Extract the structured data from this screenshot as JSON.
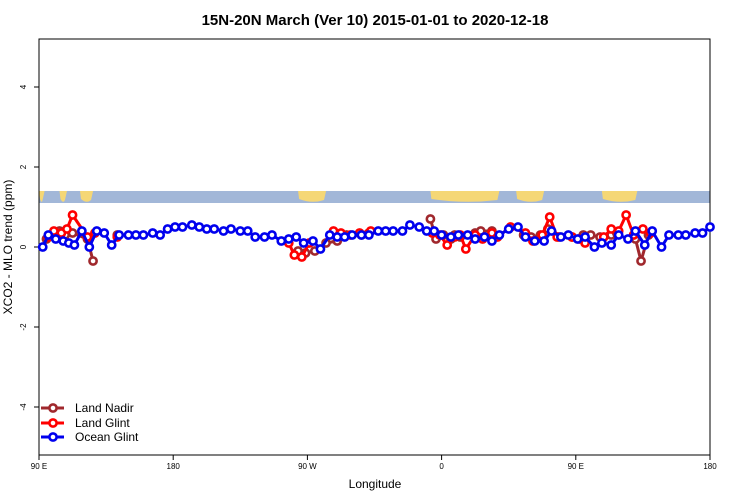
{
  "chart_data": {
    "type": "line",
    "title": "15N-20N March (Ver 10)   2015-01-01 to 2020-12-18",
    "xlabel": "Longitude",
    "ylabel": "XCO2 - MLO trend (ppm)",
    "xlim": [
      90,
      450
    ],
    "ylim": [
      -5.2,
      5.2
    ],
    "x_ticks": [
      {
        "value": 90,
        "label": "90 E"
      },
      {
        "value": 162,
        "label": "180"
      },
      {
        "value": 234,
        "label": "90 W"
      },
      {
        "value": 306,
        "label": "0"
      },
      {
        "value": 378,
        "label": "90 E"
      },
      {
        "value": 450,
        "label": "180"
      }
    ],
    "y_ticks": [
      {
        "value": -4,
        "label": "-4"
      },
      {
        "value": -2,
        "label": "-2"
      },
      {
        "value": 0,
        "label": "0"
      },
      {
        "value": 2,
        "label": "2"
      },
      {
        "value": 4,
        "label": "4"
      }
    ],
    "legend_position": "bottom-left",
    "map_strip": {
      "y_low": 1.1,
      "y_high": 1.4,
      "ocean_color": "#a2b7d8",
      "land_color": "#f5d776"
    },
    "series": [
      {
        "name": "Land Nadir",
        "color": "#a0282d",
        "x": [
          94,
          97,
          101,
          104,
          108,
          116,
          119,
          132,
          229,
          233,
          238,
          244,
          250,
          255,
          263,
          267,
          300,
          303,
          307,
          311,
          313,
          316,
          324,
          327,
          333,
          350,
          354,
          359,
          363,
          369,
          376,
          382,
          386,
          391,
          397,
          400,
          410,
          413,
          417
        ],
        "y": [
          0.2,
          0.3,
          0.4,
          0.3,
          0.35,
          0.2,
          -0.35,
          0.3,
          -0.1,
          -0.15,
          -0.1,
          0.1,
          0.15,
          0.3,
          0.3,
          0.35,
          0.7,
          0.2,
          0.3,
          0.2,
          0.3,
          0.25,
          0.35,
          0.4,
          0.4,
          0.3,
          0.25,
          0.3,
          0.45,
          0.25,
          0.25,
          0.3,
          0.3,
          0.25,
          0.3,
          0.35,
          0.2,
          -0.35,
          0.3
        ]
      },
      {
        "name": "Land Glint",
        "color": "#ff0000",
        "x": [
          95,
          98,
          102,
          105,
          108,
          116,
          120,
          132,
          224,
          227,
          231,
          235,
          248,
          252,
          257,
          262,
          268,
          301,
          305,
          309,
          313,
          316,
          319,
          324,
          328,
          333,
          336,
          343,
          351,
          355,
          360,
          364,
          368,
          376,
          380,
          383,
          393,
          397,
          401,
          405,
          409,
          414,
          418
        ],
        "y": [
          0.25,
          0.4,
          0.35,
          0.45,
          0.8,
          0.25,
          0.35,
          0.25,
          0.1,
          -0.2,
          -0.25,
          0.1,
          0.4,
          0.35,
          0.3,
          0.35,
          0.4,
          0.35,
          0.3,
          0.05,
          0.25,
          0.3,
          -0.05,
          0.3,
          0.2,
          0.35,
          0.25,
          0.5,
          0.35,
          0.15,
          0.3,
          0.75,
          0.25,
          0.25,
          0.2,
          0.1,
          0.25,
          0.45,
          0.4,
          0.8,
          0.3,
          0.45,
          0.35
        ]
      },
      {
        "name": "Ocean Glint",
        "color": "#0000ee",
        "x": [
          92,
          95,
          99,
          103,
          106,
          109,
          113,
          117,
          121,
          125,
          129,
          133,
          138,
          142,
          146,
          151,
          155,
          159,
          163,
          167,
          172,
          176,
          180,
          184,
          189,
          193,
          198,
          202,
          206,
          211,
          215,
          220,
          224,
          228,
          232,
          237,
          241,
          246,
          250,
          254,
          258,
          263,
          267,
          272,
          276,
          280,
          285,
          289,
          294,
          298,
          302,
          306,
          311,
          315,
          320,
          324,
          329,
          333,
          337,
          342,
          347,
          351,
          356,
          361,
          365,
          370,
          374,
          379,
          383,
          388,
          392,
          397,
          401,
          406,
          410,
          415,
          419,
          424,
          428,
          433,
          437,
          442,
          446,
          450
        ],
        "y": [
          0.0,
          0.3,
          0.2,
          0.15,
          0.1,
          0.05,
          0.4,
          0.0,
          0.4,
          0.35,
          0.05,
          0.3,
          0.3,
          0.3,
          0.3,
          0.35,
          0.3,
          0.45,
          0.5,
          0.5,
          0.55,
          0.5,
          0.45,
          0.45,
          0.4,
          0.45,
          0.4,
          0.4,
          0.25,
          0.25,
          0.3,
          0.15,
          0.2,
          0.25,
          0.1,
          0.15,
          -0.05,
          0.3,
          0.25,
          0.25,
          0.3,
          0.3,
          0.3,
          0.4,
          0.4,
          0.4,
          0.4,
          0.55,
          0.5,
          0.4,
          0.4,
          0.3,
          0.25,
          0.3,
          0.3,
          0.2,
          0.25,
          0.15,
          0.3,
          0.45,
          0.5,
          0.25,
          0.15,
          0.15,
          0.4,
          0.25,
          0.3,
          0.2,
          0.25,
          0.0,
          0.1,
          0.05,
          0.3,
          0.2,
          0.4,
          0.05,
          0.4,
          0.0,
          0.3,
          0.3,
          0.3,
          0.35,
          0.35,
          0.5
        ]
      }
    ]
  }
}
